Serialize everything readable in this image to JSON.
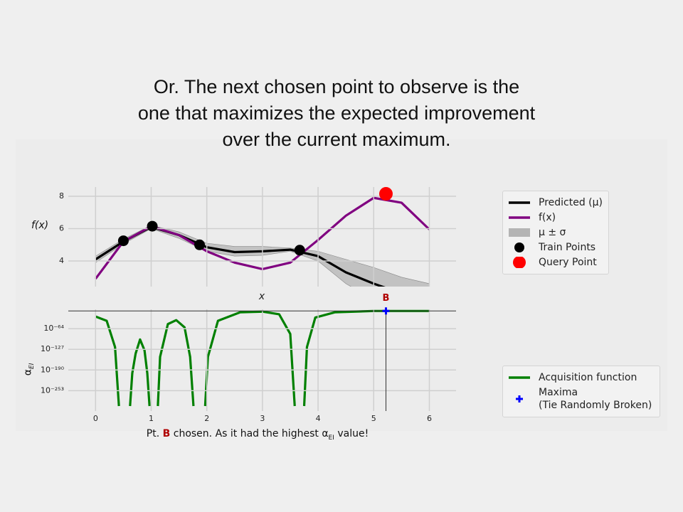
{
  "slide_title": "Or. The next chosen point to observe is the one that maximizes the expected improvement over the current maximum.",
  "caption": {
    "prefix": "Pt. ",
    "highlight": "B",
    "middle": " chosen. As it had the highest ",
    "symbol": "α",
    "subscript": "EI",
    "suffix": " value!"
  },
  "chart_data": [
    {
      "type": "line",
      "x_label": "x",
      "y_label": "f(x)",
      "xlim": [
        -0.49,
        6.48
      ],
      "ylim": [
        2.42,
        8.57
      ],
      "yticks": [
        4,
        6,
        8
      ],
      "grid": true,
      "x": [
        0,
        0.5,
        1,
        1.5,
        2,
        2.5,
        3,
        3.5,
        4,
        4.5,
        5,
        5.5,
        6
      ],
      "series": [
        {
          "name": "Predicted (μ)",
          "kind": "line",
          "color": "#000000",
          "values": [
            4.1,
            5.2,
            6.1,
            5.6,
            4.85,
            4.55,
            4.6,
            4.7,
            4.3,
            3.3,
            2.6,
            2.0,
            1.5
          ]
        },
        {
          "name": "f(x)",
          "kind": "line",
          "color": "#800080",
          "values": [
            2.9,
            5.2,
            6.15,
            5.6,
            4.6,
            3.9,
            3.5,
            3.9,
            5.3,
            6.8,
            7.9,
            7.6,
            5.95
          ]
        },
        {
          "name": "μ ± σ",
          "kind": "band",
          "color": "#b4b4b4",
          "upper": [
            4.3,
            5.35,
            6.2,
            5.8,
            5.1,
            4.9,
            4.9,
            4.8,
            4.6,
            4.1,
            3.6,
            3.0,
            2.6
          ],
          "lower": [
            3.9,
            5.05,
            6.0,
            5.4,
            4.6,
            4.3,
            4.35,
            4.6,
            4.0,
            2.6,
            1.6,
            1.0,
            0.5
          ]
        },
        {
          "name": "Train Points",
          "kind": "scatter",
          "color": "#000000",
          "x": [
            0.5,
            1.02,
            1.87,
            3.67
          ],
          "values": [
            5.25,
            6.15,
            5.0,
            4.67
          ]
        },
        {
          "name": "Query Point",
          "kind": "scatter",
          "color": "#ff0000",
          "x": [
            5.22
          ],
          "values": [
            8.15
          ]
        }
      ]
    },
    {
      "type": "line",
      "y_label": "α",
      "y_label_sub": "EI",
      "log_scale_y": true,
      "xlim": [
        -0.49,
        6.48
      ],
      "xticks": [
        0,
        1,
        2,
        3,
        4,
        5,
        6
      ],
      "ylim": [
        1e-300,
        1e-05
      ],
      "yticks": [
        {
          "value": 1e-64,
          "label": "10⁻⁶⁴"
        },
        {
          "value": 1e-127,
          "label": "10⁻¹²⁷"
        },
        {
          "value": 1e-190,
          "label": "10⁻¹⁹⁰"
        },
        {
          "value": 1e-253,
          "label": "10⁻²⁵³"
        }
      ],
      "grid": true,
      "annotation": "B",
      "x": [
        0,
        0.2,
        0.35,
        0.42,
        0.5,
        0.62,
        0.66,
        0.72,
        0.8,
        0.88,
        0.93,
        0.97,
        1.05,
        1.12,
        1.16,
        1.3,
        1.45,
        1.6,
        1.7,
        1.76,
        1.85,
        1.97,
        2.02,
        2.2,
        2.6,
        3.0,
        3.3,
        3.5,
        3.58,
        3.65,
        3.75,
        3.8,
        3.95,
        4.3,
        5,
        5.22,
        6
      ],
      "series": [
        {
          "name": "Acquisition function",
          "kind": "line",
          "color": "#008000",
          "values": [
            1e-27,
            1e-40,
            1e-120,
            1e-300,
            null,
            1e-300,
            1e-200,
            1e-140,
            1e-97,
            1e-130,
            1e-200,
            1e-300,
            null,
            1e-300,
            1e-150,
            1e-50,
            1e-38,
            1e-60,
            1e-150,
            1e-300,
            null,
            1e-300,
            1e-150,
            1e-40,
            1e-14,
            1e-12,
            1e-20,
            1e-80,
            1e-300,
            null,
            1e-300,
            1e-120,
            1e-30,
            1e-14,
            1e-10,
            1e-10,
            1e-10
          ]
        },
        {
          "name": "Maxima\n(Tie Randomly Broken)",
          "kind": "scatter",
          "marker": "plus",
          "color": "#0000ff",
          "x": [
            5.22
          ],
          "values": [
            1e-10
          ]
        }
      ]
    }
  ]
}
